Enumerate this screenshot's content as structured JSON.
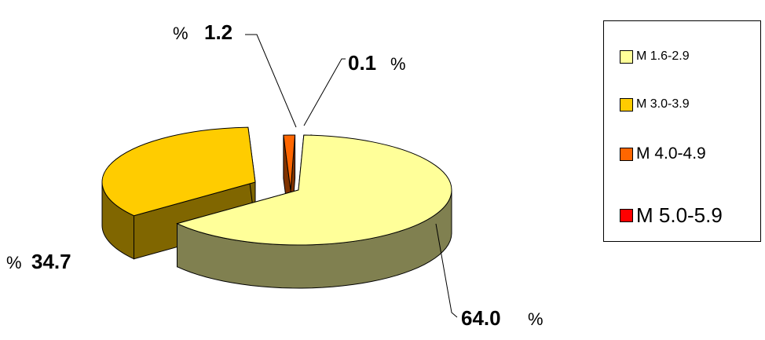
{
  "chart_data": {
    "type": "pie",
    "title": "",
    "unit": "%",
    "categories": [
      "M 1.6-2.9",
      "M 3.0-3.9",
      "M 4.0-4.9",
      "M 5.0-5.9"
    ],
    "values": [
      64.0,
      34.7,
      1.2,
      0.1
    ],
    "value_labels": [
      "64.0",
      "34.7",
      "1.2",
      "0.1"
    ],
    "colors": {
      "top": [
        "#ffff99",
        "#ffcc00",
        "#ff6600",
        "#ff0000"
      ],
      "side": [
        "#808050",
        "#806600",
        "#803300",
        "#800000"
      ]
    },
    "exploded": true,
    "style_3d": true,
    "legend_position": "right"
  },
  "legend": {
    "items": [
      {
        "label": "M 1.6-2.9",
        "color": "#ffff99"
      },
      {
        "label": "M 3.0-3.9",
        "color": "#ffcc00"
      },
      {
        "label": "M 4.0-4.9",
        "color": "#ff6600"
      },
      {
        "label": "M 5.0-5.9",
        "color": "#ff0000"
      }
    ]
  },
  "percent_sign": "%"
}
